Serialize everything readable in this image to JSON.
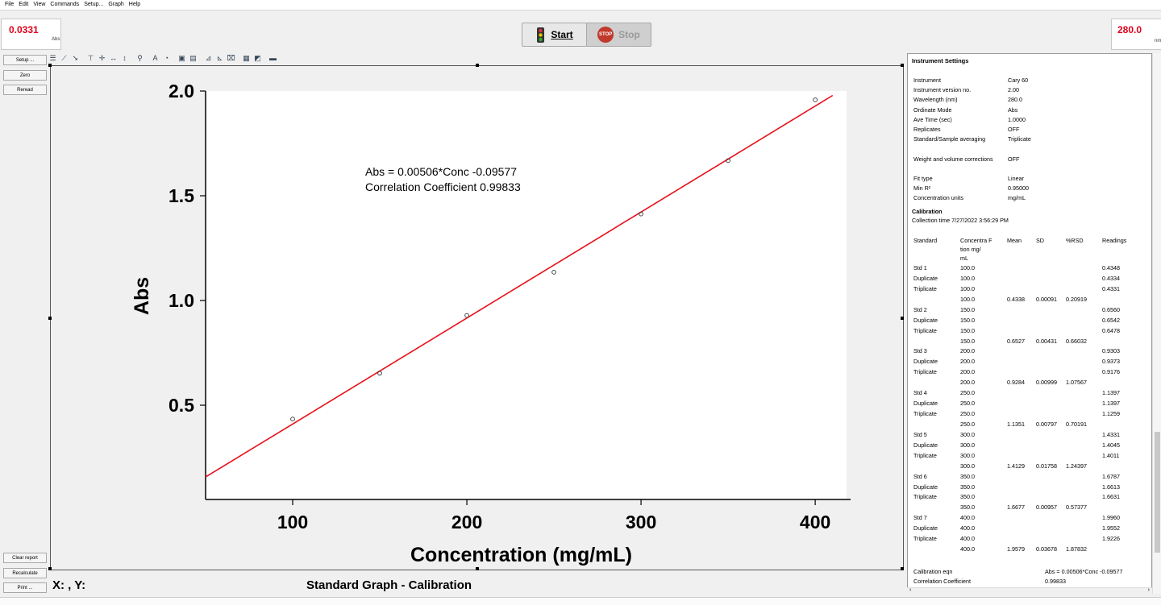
{
  "menu": [
    "File",
    "Edit",
    "View",
    "Commands",
    "Setup...",
    "Graph",
    "Help"
  ],
  "readouts": {
    "abs": {
      "value": "0.0331",
      "unit": "Abs"
    },
    "wavelength": {
      "value": "280.0",
      "unit": "nm"
    }
  },
  "controls": {
    "start_label": "Start",
    "stop_label": "Stop",
    "stop_icon_text": "STOP"
  },
  "left_buttons": {
    "setup": "Setup ...",
    "zero": "Zero",
    "reread": "Reread",
    "clear_report": "Clear report",
    "recalculate": "Recalculate",
    "print": "Print ..."
  },
  "status": {
    "xy": "X: , Y:",
    "graph_title": "Standard Graph - Calibration"
  },
  "chart_data": {
    "type": "scatter",
    "title": "",
    "xlabel": "Concentration (mg/mL)",
    "ylabel": "Abs",
    "xlim": [
      50,
      418
    ],
    "ylim": [
      0.05,
      2.0
    ],
    "xticks": [
      100,
      200,
      300,
      400
    ],
    "yticks": [
      0.5,
      1.0,
      1.5,
      2.0
    ],
    "ytick_labels": [
      "0.5",
      "1.0",
      "1.5",
      "2.0"
    ],
    "points": {
      "x": [
        100,
        150,
        200,
        250,
        300,
        350,
        400
      ],
      "y": [
        0.4338,
        0.6527,
        0.9284,
        1.1351,
        1.4129,
        1.6677,
        1.9579
      ]
    },
    "fit": {
      "slope": 0.00506,
      "intercept": -0.09577,
      "color": "#e8101a"
    },
    "annotation": {
      "equation": "Abs = 0.00506*Conc -0.09577",
      "correlation": "Correlation Coefficient  0.99833"
    },
    "grid": false
  },
  "report": {
    "title": "Instrument Settings",
    "settings": [
      {
        "key": "Instrument",
        "value": "Cary 60"
      },
      {
        "key": "Instrument version no.",
        "value": "2.00"
      },
      {
        "key": "Wavelength (nm)",
        "value": "280.0"
      },
      {
        "key": "Ordinate Mode",
        "value": "Abs"
      },
      {
        "key": "Ave Time (sec)",
        "value": "1.0000"
      },
      {
        "key": "Replicates",
        "value": "OFF"
      },
      {
        "key": "Standard/Sample averaging",
        "value": "Triplicate"
      },
      {
        "key": "Weight and volume corrections",
        "value": "OFF"
      },
      {
        "key": "Fit type",
        "value": "Linear"
      },
      {
        "key": "Min R²",
        "value": "0.95000"
      },
      {
        "key": "Concentration units",
        "value": "mg/mL"
      }
    ],
    "calibration_heading": "Calibration",
    "collection_time": "Collection time 7/27/2022 3:56:29 PM",
    "table_headers": {
      "standard": "Standard",
      "conc": "Concentra F\ntion mg/\nmL",
      "mean": "Mean",
      "sd": "SD",
      "rsd": "%RSD",
      "readings": "Readings"
    },
    "rows": [
      {
        "label": "Std 1",
        "conc": "100.0",
        "mean": "",
        "sd": "",
        "rsd": "",
        "reading": "0.4348"
      },
      {
        "label": "Duplicate",
        "conc": "100.0",
        "mean": "",
        "sd": "",
        "rsd": "",
        "reading": "0.4334"
      },
      {
        "label": "Triplicate",
        "conc": "100.0",
        "mean": "",
        "sd": "",
        "rsd": "",
        "reading": "0.4331"
      },
      {
        "label": "",
        "conc": "100.0",
        "mean": "0.4338",
        "sd": "0.00091",
        "rsd": "0.20919",
        "reading": ""
      },
      {
        "label": "Std 2",
        "conc": "150.0",
        "mean": "",
        "sd": "",
        "rsd": "",
        "reading": "0.6560"
      },
      {
        "label": "Duplicate",
        "conc": "150.0",
        "mean": "",
        "sd": "",
        "rsd": "",
        "reading": "0.6542"
      },
      {
        "label": "Triplicate",
        "conc": "150.0",
        "mean": "",
        "sd": "",
        "rsd": "",
        "reading": "0.6478"
      },
      {
        "label": "",
        "conc": "150.0",
        "mean": "0.6527",
        "sd": "0.00431",
        "rsd": "0.66032",
        "reading": ""
      },
      {
        "label": "Std 3",
        "conc": "200.0",
        "mean": "",
        "sd": "",
        "rsd": "",
        "reading": "0.9303"
      },
      {
        "label": "Duplicate",
        "conc": "200.0",
        "mean": "",
        "sd": "",
        "rsd": "",
        "reading": "0.9373"
      },
      {
        "label": "Triplicate",
        "conc": "200.0",
        "mean": "",
        "sd": "",
        "rsd": "",
        "reading": "0.9176"
      },
      {
        "label": "",
        "conc": "200.0",
        "mean": "0.9284",
        "sd": "0.00999",
        "rsd": "1.07567",
        "reading": ""
      },
      {
        "label": "Std 4",
        "conc": "250.0",
        "mean": "",
        "sd": "",
        "rsd": "",
        "reading": "1.1397"
      },
      {
        "label": "Duplicate",
        "conc": "250.0",
        "mean": "",
        "sd": "",
        "rsd": "",
        "reading": "1.1397"
      },
      {
        "label": "Triplicate",
        "conc": "250.0",
        "mean": "",
        "sd": "",
        "rsd": "",
        "reading": "1.1259"
      },
      {
        "label": "",
        "conc": "250.0",
        "mean": "1.1351",
        "sd": "0.00797",
        "rsd": "0.70191",
        "reading": ""
      },
      {
        "label": "Std 5",
        "conc": "300.0",
        "mean": "",
        "sd": "",
        "rsd": "",
        "reading": "1.4331"
      },
      {
        "label": "Duplicate",
        "conc": "300.0",
        "mean": "",
        "sd": "",
        "rsd": "",
        "reading": "1.4045"
      },
      {
        "label": "Triplicate",
        "conc": "300.0",
        "mean": "",
        "sd": "",
        "rsd": "",
        "reading": "1.4011"
      },
      {
        "label": "",
        "conc": "300.0",
        "mean": "1.4129",
        "sd": "0.01758",
        "rsd": "1.24397",
        "reading": ""
      },
      {
        "label": "Std 6",
        "conc": "350.0",
        "mean": "",
        "sd": "",
        "rsd": "",
        "reading": "1.6787"
      },
      {
        "label": "Duplicate",
        "conc": "350.0",
        "mean": "",
        "sd": "",
        "rsd": "",
        "reading": "1.6613"
      },
      {
        "label": "Triplicate",
        "conc": "350.0",
        "mean": "",
        "sd": "",
        "rsd": "",
        "reading": "1.6631"
      },
      {
        "label": "",
        "conc": "350.0",
        "mean": "1.6677",
        "sd": "0.00957",
        "rsd": "0.57377",
        "reading": ""
      },
      {
        "label": "Std 7",
        "conc": "400.0",
        "mean": "",
        "sd": "",
        "rsd": "",
        "reading": "1.9960"
      },
      {
        "label": "Duplicate",
        "conc": "400.0",
        "mean": "",
        "sd": "",
        "rsd": "",
        "reading": "1.9552"
      },
      {
        "label": "Triplicate",
        "conc": "400.0",
        "mean": "",
        "sd": "",
        "rsd": "",
        "reading": "1.9226"
      },
      {
        "label": "",
        "conc": "400.0",
        "mean": "1.9579",
        "sd": "0.03678",
        "rsd": "1.87832",
        "reading": ""
      }
    ],
    "footer": [
      {
        "key": "Calibration eqn",
        "value": "Abs = 0.00506*Conc -0.09577"
      },
      {
        "key": "Correlation Coefficient",
        "value": "0.99833"
      }
    ]
  }
}
